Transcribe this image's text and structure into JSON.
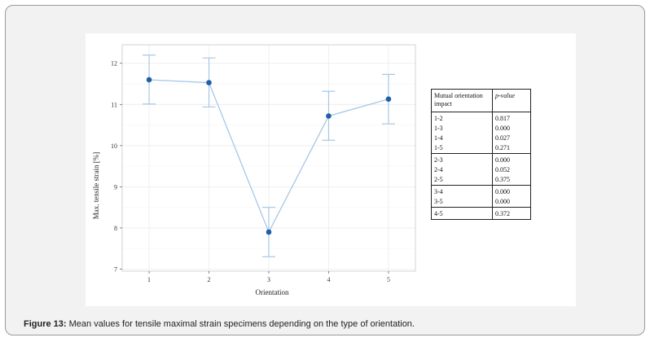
{
  "chart_data": {
    "type": "line",
    "xlabel": "Orientation",
    "ylabel": "Max. tensile strain [%]",
    "x": [
      1,
      2,
      3,
      4,
      5
    ],
    "x_ticks": [
      "1",
      "2",
      "3",
      "4",
      "5"
    ],
    "y_ticks": [
      "7",
      "8",
      "9",
      "10",
      "11",
      "12"
    ],
    "xlim": [
      0.55,
      5.45
    ],
    "ylim": [
      6.95,
      12.45
    ],
    "grid": true,
    "series": [
      {
        "values": [
          11.6,
          11.53,
          7.9,
          10.72,
          11.13
        ],
        "error_lower": [
          11.01,
          10.94,
          7.3,
          10.13,
          10.53
        ],
        "error_upper": [
          12.2,
          12.13,
          8.5,
          11.32,
          11.73
        ]
      }
    ],
    "colors": {
      "line": "#a7c7e7",
      "point": "#1f5fa6",
      "error_bar": "#a7c7e7",
      "grid": "#ececec"
    }
  },
  "table": {
    "header": {
      "col1": "Mutual orientation impact",
      "col2": "p-value"
    },
    "groups": [
      {
        "rows": [
          [
            "1-2",
            "0.817"
          ],
          [
            "1-3",
            "0.000"
          ],
          [
            "1-4",
            "0.027"
          ],
          [
            "1-5",
            "0.271"
          ]
        ]
      },
      {
        "rows": [
          [
            "2-3",
            "0.000"
          ],
          [
            "2-4",
            "0.052"
          ],
          [
            "2-5",
            "0.375"
          ]
        ]
      },
      {
        "rows": [
          [
            "3-4",
            "0.000"
          ],
          [
            "3-5",
            "0.000"
          ]
        ]
      },
      {
        "rows": [
          [
            "4-5",
            "0.372"
          ]
        ]
      }
    ]
  },
  "caption": {
    "label": "Figure 13:",
    "text": " Mean values for tensile maximal strain specimens depending on the type of orientation."
  }
}
